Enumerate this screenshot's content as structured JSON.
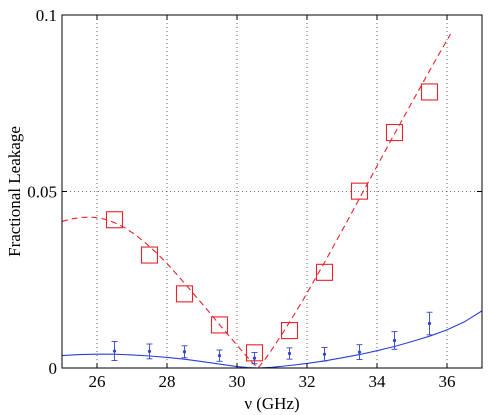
{
  "chart_data": {
    "type": "scatter",
    "xlabel": "ν (GHz)",
    "ylabel": "Fractional Leakage",
    "xlim": [
      25,
      37
    ],
    "ylim": [
      0,
      0.1
    ],
    "x_ticks": [
      26,
      28,
      30,
      32,
      34,
      36
    ],
    "y_ticks": [
      0,
      0.05,
      0.1
    ],
    "x_tick_labels": [
      "26",
      "28",
      "30",
      "32",
      "34",
      "36"
    ],
    "y_tick_labels": [
      "0",
      "0.05",
      "0.1"
    ],
    "grid": true,
    "series": [
      {
        "kind": "markers",
        "marker": "square",
        "color": "#e8232b",
        "x": [
          26.5,
          27.5,
          28.5,
          29.5,
          30.5,
          31.5,
          32.5,
          33.5,
          34.5,
          35.5
        ],
        "y": [
          0.042,
          0.032,
          0.021,
          0.0122,
          0.0043,
          0.0106,
          0.0271,
          0.0501,
          0.0667,
          0.0782
        ]
      },
      {
        "kind": "dashed-line",
        "color": "#e8232b",
        "x": [
          25.0,
          25.3,
          25.6,
          25.9,
          26.2,
          26.5,
          26.8,
          27.1,
          27.4,
          27.7,
          28.0,
          28.3,
          28.6,
          28.9,
          29.2,
          29.5,
          29.8,
          30.1,
          30.4,
          30.6,
          30.8,
          31.0,
          31.3,
          31.6,
          31.9,
          32.2,
          32.5,
          32.8,
          33.1,
          33.4,
          33.7,
          34.0,
          34.3,
          34.6,
          34.9,
          35.2,
          35.5,
          35.8,
          36.1
        ],
        "y": [
          0.0415,
          0.0423,
          0.0427,
          0.0427,
          0.0422,
          0.0412,
          0.0397,
          0.0377,
          0.0353,
          0.0326,
          0.0296,
          0.0263,
          0.0229,
          0.0194,
          0.0159,
          0.0123,
          0.0088,
          0.0053,
          0.0019,
          0.0,
          0.0024,
          0.0053,
          0.0098,
          0.0146,
          0.0195,
          0.0247,
          0.0299,
          0.0353,
          0.0407,
          0.0462,
          0.0517,
          0.0572,
          0.0627,
          0.0681,
          0.0735,
          0.0788,
          0.0842,
          0.0894,
          0.0946
        ]
      },
      {
        "kind": "errorbars",
        "color": "#3344cc",
        "x": [
          26.5,
          27.5,
          28.5,
          29.5,
          30.5,
          31.5,
          32.5,
          33.5,
          34.5,
          35.5
        ],
        "y": [
          0.0048,
          0.0047,
          0.0046,
          0.0035,
          0.0028,
          0.0041,
          0.0039,
          0.0045,
          0.0078,
          0.0126
        ],
        "err": [
          0.0027,
          0.0021,
          0.0017,
          0.0016,
          0.0016,
          0.0016,
          0.0019,
          0.0021,
          0.0025,
          0.0032
        ]
      },
      {
        "kind": "line",
        "color": "#2b3fd6",
        "x": [
          25.0,
          25.5,
          26.0,
          26.5,
          27.0,
          27.5,
          28.0,
          28.5,
          29.0,
          29.5,
          30.0,
          30.3,
          30.6,
          31.0,
          31.5,
          32.0,
          32.5,
          33.0,
          33.5,
          34.0,
          34.5,
          35.0,
          35.5,
          36.0,
          36.5,
          37.0
        ],
        "y": [
          0.0035,
          0.0038,
          0.0039,
          0.0039,
          0.0037,
          0.0034,
          0.003,
          0.0025,
          0.0018,
          0.0011,
          0.0004,
          0.0001,
          0.0,
          0.0002,
          0.0007,
          0.0013,
          0.002,
          0.0029,
          0.0038,
          0.0049,
          0.0061,
          0.0075,
          0.009,
          0.0108,
          0.0131,
          0.0162
        ]
      }
    ]
  }
}
